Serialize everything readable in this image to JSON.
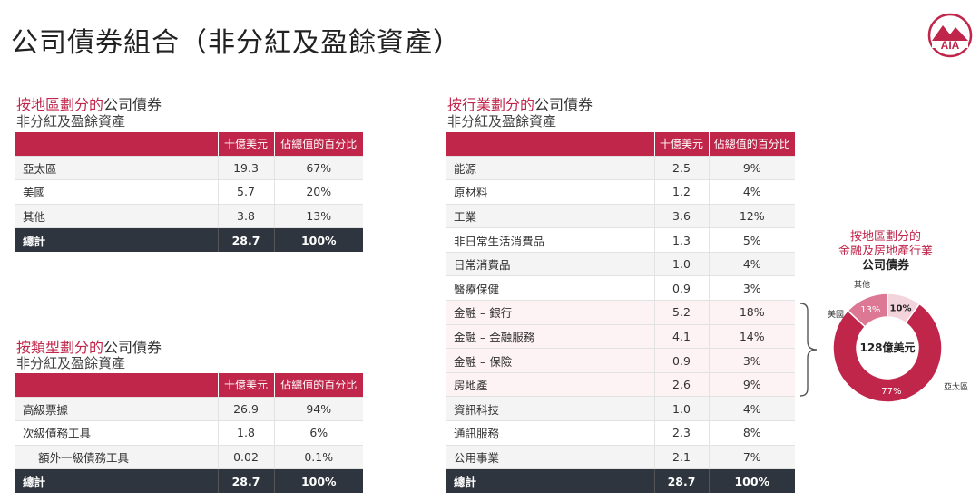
{
  "page": {
    "title": "公司債券組合（非分紅及盈餘資產）"
  },
  "logo_text": "AIA",
  "colors": {
    "brand": "#c0254a",
    "total_row": "#2f353e",
    "light_row": "#f4f4f4"
  },
  "region": {
    "title_highlight": "按地區劃分的",
    "title_rest": "公司債券",
    "subtitle": "非分紅及盈餘資產",
    "headers": [
      "",
      "十億美元",
      "佔總值的百分比"
    ],
    "rows": [
      {
        "label": "亞太區",
        "value": "19.3",
        "pct": "67%"
      },
      {
        "label": "美國",
        "value": "5.7",
        "pct": "20%"
      },
      {
        "label": "其他",
        "value": "3.8",
        "pct": "13%"
      }
    ],
    "total": {
      "label": "總計",
      "value": "28.7",
      "pct": "100%"
    }
  },
  "type": {
    "title_highlight": "按類型劃分的",
    "title_rest": "公司債券",
    "subtitle": "非分紅及盈餘資產",
    "headers": [
      "",
      "十億美元",
      "佔總值的百分比"
    ],
    "rows": [
      {
        "label": "高級票據",
        "value": "26.9",
        "pct": "94%"
      },
      {
        "label": "次級債務工具",
        "value": "1.8",
        "pct": "6%"
      },
      {
        "label": "額外一級債務工具",
        "value": "0.02",
        "pct": "0.1%"
      }
    ],
    "total": {
      "label": "總計",
      "value": "28.7",
      "pct": "100%"
    }
  },
  "industry": {
    "title_highlight": "按行業劃分的",
    "title_rest": "公司債券",
    "subtitle": "非分紅及盈餘資產",
    "headers": [
      "",
      "十億美元",
      "佔總值的百分比"
    ],
    "rows": [
      {
        "label": "能源",
        "value": "2.5",
        "pct": "9%"
      },
      {
        "label": "原材料",
        "value": "1.2",
        "pct": "4%"
      },
      {
        "label": "工業",
        "value": "3.6",
        "pct": "12%"
      },
      {
        "label": "非日常生活消費品",
        "value": "1.3",
        "pct": "5%"
      },
      {
        "label": "日常消費品",
        "value": "1.0",
        "pct": "4%"
      },
      {
        "label": "醫療保健",
        "value": "0.9",
        "pct": "3%"
      },
      {
        "label": "金融 – 銀行",
        "value": "5.2",
        "pct": "18%"
      },
      {
        "label": "金融 – 金融服務",
        "value": "4.1",
        "pct": "14%"
      },
      {
        "label": "金融 – 保險",
        "value": "0.9",
        "pct": "3%"
      },
      {
        "label": "房地產",
        "value": "2.6",
        "pct": "9%"
      },
      {
        "label": "資訊科技",
        "value": "1.0",
        "pct": "4%"
      },
      {
        "label": "通訊服務",
        "value": "2.3",
        "pct": "8%"
      },
      {
        "label": "公用事業",
        "value": "2.1",
        "pct": "7%"
      }
    ],
    "total": {
      "label": "總計",
      "value": "28.7",
      "pct": "100%"
    }
  },
  "chart_data": {
    "type": "pie",
    "title_line1": "按地區劃分的",
    "title_line2": "金融及房地產行業",
    "title_line3": "公司債券",
    "center_label": "128億美元",
    "slices": [
      {
        "label": "亞太區",
        "value": 77,
        "value_label": "77%",
        "color": "#c0254a"
      },
      {
        "label": "美國",
        "value": 13,
        "value_label": "13%",
        "color": "#dc7893"
      },
      {
        "label": "其他",
        "value": 10,
        "value_label": "10%",
        "color": "#f3d3dc"
      }
    ]
  }
}
